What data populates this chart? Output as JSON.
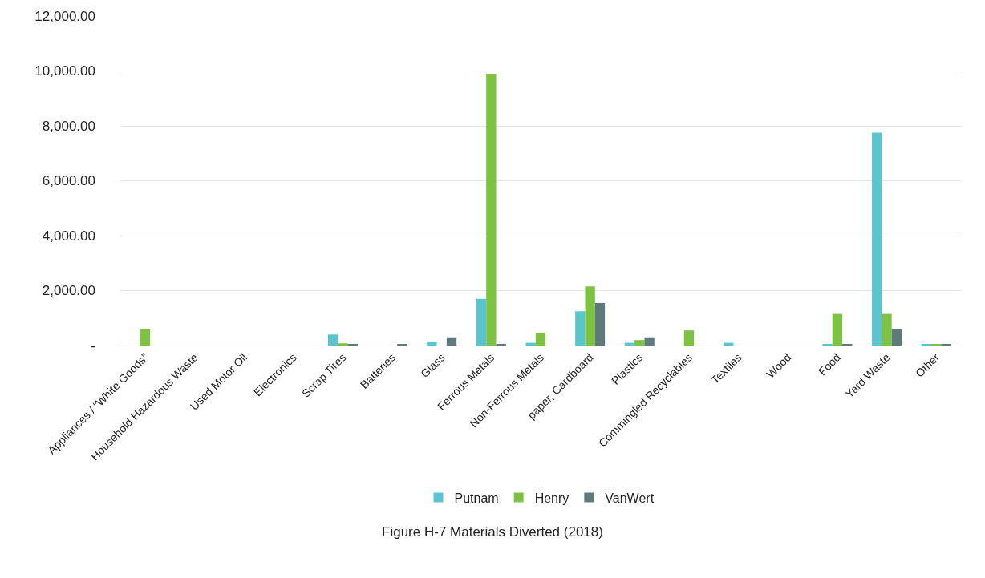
{
  "chart_data": {
    "type": "bar",
    "title": "Figure H-7 Materials Diverted (2018)",
    "categories": [
      "Appliances / “White Goods”",
      "Household Hazardous Waste",
      "Used Motor Oil",
      "Electronics",
      "Scrap Tires",
      "Batteries",
      "Glass",
      "Ferrous Metals",
      "Non-Ferrous Metals",
      "paper, Cardboard",
      "Plastics",
      "Commingled Recyclables",
      "Textiles",
      "Wood",
      "Food",
      "Yard Waste",
      "Other"
    ],
    "series": [
      {
        "name": "Putnam",
        "color": "#5bc4d1",
        "values": [
          0,
          0,
          0,
          0,
          400,
          0,
          150,
          1700,
          100,
          1250,
          100,
          0,
          100,
          0,
          30,
          7750,
          30
        ]
      },
      {
        "name": "Henry",
        "color": "#7dc242",
        "values": [
          600,
          0,
          0,
          0,
          80,
          0,
          0,
          9900,
          450,
          2150,
          200,
          550,
          0,
          0,
          1150,
          1150,
          30
        ]
      },
      {
        "name": "VanWert",
        "color": "#5f7a7d",
        "values": [
          0,
          0,
          0,
          0,
          60,
          50,
          300,
          30,
          0,
          1550,
          300,
          0,
          0,
          0,
          60,
          600,
          60
        ]
      }
    ],
    "ylim": [
      0,
      12000
    ],
    "yticks": [
      {
        "value": 0,
        "label": "-"
      },
      {
        "value": 2000,
        "label": "2,000.00"
      },
      {
        "value": 4000,
        "label": "4,000.00"
      },
      {
        "value": 6000,
        "label": "6,000.00"
      },
      {
        "value": 8000,
        "label": "8,000.00"
      },
      {
        "value": 10000,
        "label": "10,000.00"
      },
      {
        "value": 12000,
        "label": "12,000.00"
      }
    ],
    "grid": "y",
    "legend": "bottom"
  }
}
